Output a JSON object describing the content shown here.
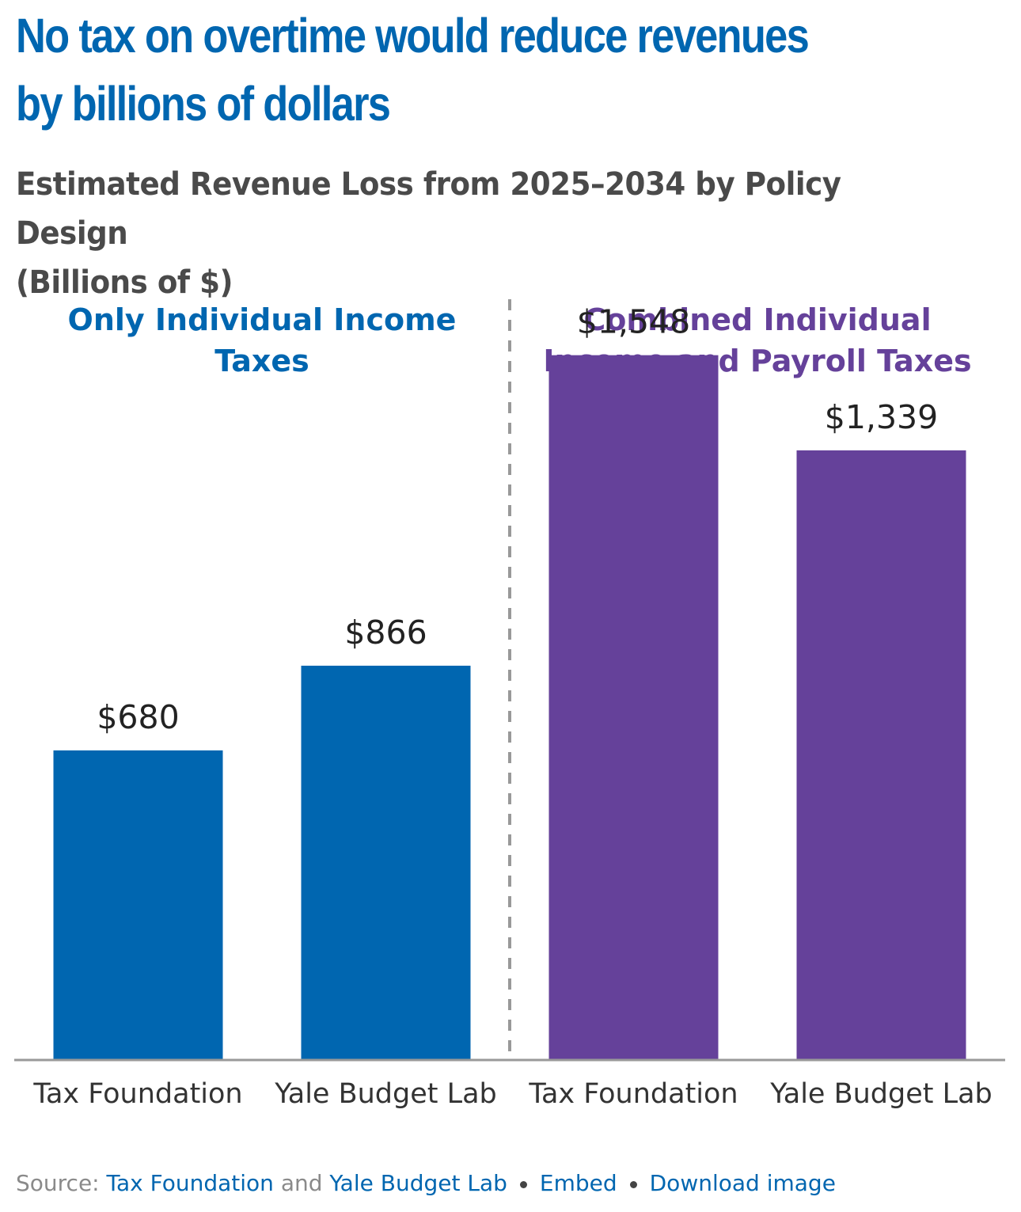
{
  "headline": {
    "line1": "No tax on overtime would reduce revenues",
    "line2": "by billions of dollars"
  },
  "subtitle": {
    "line1": "Estimated Revenue Loss from 2025–2034 by Policy Design",
    "line2": "(Billions of $)"
  },
  "colors": {
    "headline": "#0066b0",
    "blue": "#0066b0",
    "purple": "#65419a",
    "axis": "#999999",
    "divider": "#999999"
  },
  "chart_data": {
    "type": "bar",
    "title": "Estimated Revenue Loss from 2025–2034 by Policy Design (Billions of $)",
    "xlabel": "",
    "ylabel": "Billions of $",
    "ylim": [
      0,
      1650
    ],
    "grid": false,
    "groups": [
      {
        "label_lines": [
          "Only Individual Income",
          "Taxes"
        ],
        "color": "#0066b0",
        "bars": [
          {
            "category": "Tax Foundation",
            "value": 680,
            "label": "$680"
          },
          {
            "category": "Yale Budget Lab",
            "value": 866,
            "label": "$866"
          }
        ]
      },
      {
        "label_lines": [
          "Combined Individual",
          "Income and Payroll Taxes"
        ],
        "color": "#65419a",
        "bars": [
          {
            "category": "Tax Foundation",
            "value": 1548,
            "label": "$1,548"
          },
          {
            "category": "Yale Budget Lab",
            "value": 1339,
            "label": "$1,339"
          }
        ]
      }
    ]
  },
  "footer": {
    "source_prefix": "Source:",
    "source_link_1": "Tax Foundation",
    "and_text": "and",
    "source_link_2": "Yale Budget Lab",
    "embed": "Embed",
    "download": "Download image"
  }
}
